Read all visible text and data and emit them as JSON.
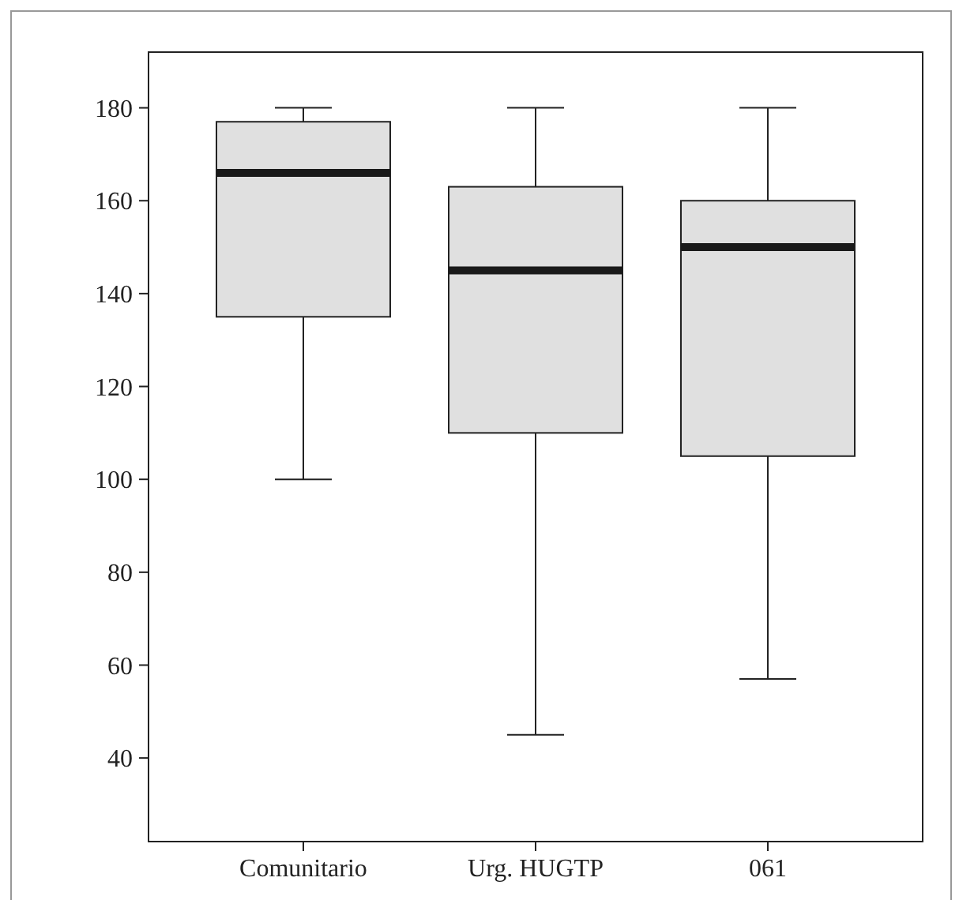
{
  "chart_data": {
    "type": "box",
    "categories": [
      "Comunitario",
      "Urg. HUGTP",
      "061"
    ],
    "boxes": [
      {
        "low": 100,
        "q1": 135,
        "median": 166,
        "q3": 177,
        "high": 180
      },
      {
        "low": 45,
        "q1": 110,
        "median": 145,
        "q3": 163,
        "high": 180
      },
      {
        "low": 57,
        "q1": 105,
        "median": 150,
        "q3": 160,
        "high": 180
      }
    ],
    "color": "#e0e0e0",
    "ylim": [
      22,
      192
    ],
    "yticks": [
      40,
      60,
      80,
      100,
      120,
      140,
      160,
      180
    ],
    "grid": false
  }
}
